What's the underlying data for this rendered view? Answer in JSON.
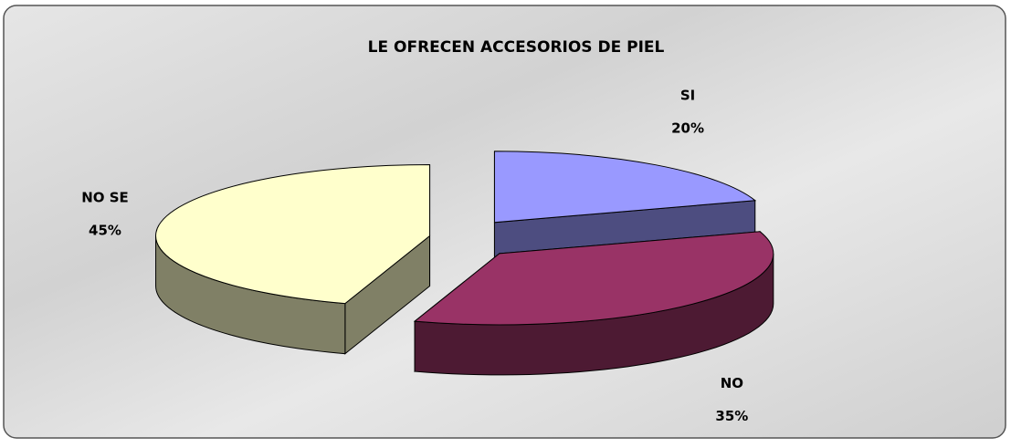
{
  "chart_data": {
    "type": "pie",
    "title": "LE OFRECEN ACCESORIOS DE PIEL",
    "categories": [
      "SI",
      "NO",
      "NO SE"
    ],
    "values": [
      20,
      35,
      45
    ],
    "value_labels": [
      "20%",
      "35%",
      "45%"
    ],
    "colors": [
      "#9999ff",
      "#993366",
      "#ffffcc"
    ]
  }
}
